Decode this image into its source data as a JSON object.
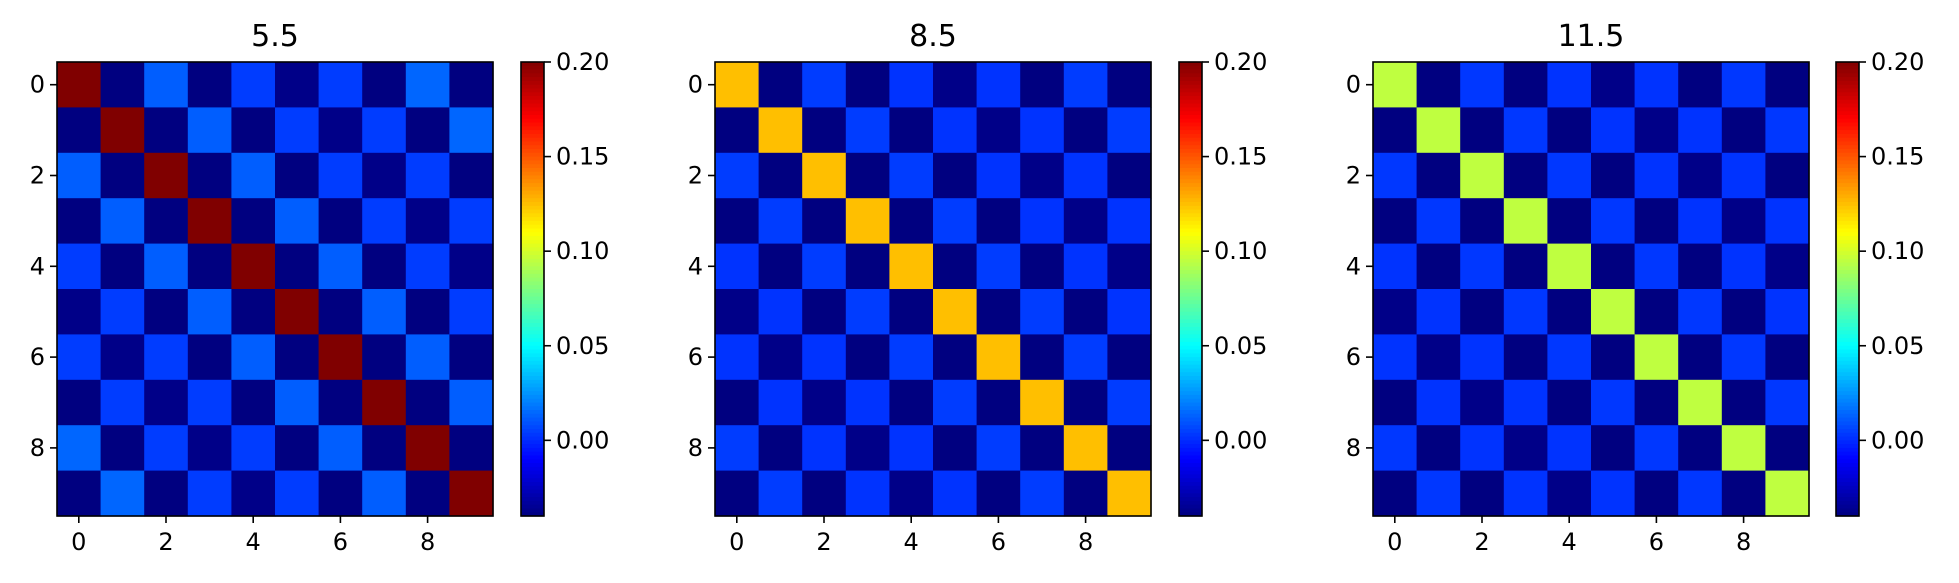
{
  "chart_data": [
    {
      "type": "heatmap",
      "title": "5.5",
      "xticks": [
        "0",
        "2",
        "4",
        "6",
        "8"
      ],
      "yticks": [
        "0",
        "2",
        "4",
        "6",
        "8"
      ],
      "colorbar": {
        "colormap": "jet",
        "vmin": -0.04,
        "vmax": 0.2,
        "ticks": [
          "0.00",
          "0.05",
          "0.10",
          "0.15",
          "0.20"
        ]
      },
      "matrix": [
        [
          0.2,
          -0.04,
          0.012,
          -0.04,
          0.004,
          -0.038,
          0.004,
          -0.04,
          0.014,
          -0.04
        ],
        [
          -0.04,
          0.2,
          -0.04,
          0.012,
          -0.04,
          0.004,
          -0.038,
          0.004,
          -0.04,
          0.014
        ],
        [
          0.012,
          -0.04,
          0.2,
          -0.04,
          0.012,
          -0.04,
          0.004,
          -0.038,
          0.004,
          -0.04
        ],
        [
          -0.04,
          0.012,
          -0.04,
          0.2,
          -0.04,
          0.012,
          -0.04,
          0.004,
          -0.038,
          0.004
        ],
        [
          0.004,
          -0.04,
          0.012,
          -0.04,
          0.2,
          -0.04,
          0.012,
          -0.04,
          0.004,
          -0.038
        ],
        [
          -0.038,
          0.004,
          -0.04,
          0.012,
          -0.04,
          0.2,
          -0.04,
          0.012,
          -0.04,
          0.004
        ],
        [
          0.004,
          -0.038,
          0.004,
          -0.04,
          0.012,
          -0.04,
          0.2,
          -0.04,
          0.012,
          -0.04
        ],
        [
          -0.04,
          0.004,
          -0.038,
          0.004,
          -0.04,
          0.012,
          -0.04,
          0.2,
          -0.04,
          0.012
        ],
        [
          0.014,
          -0.04,
          0.004,
          -0.038,
          0.004,
          -0.04,
          0.012,
          -0.04,
          0.2,
          -0.04
        ],
        [
          -0.04,
          0.014,
          -0.04,
          0.004,
          -0.038,
          0.004,
          -0.04,
          0.012,
          -0.04,
          0.2
        ]
      ]
    },
    {
      "type": "heatmap",
      "title": "8.5",
      "xticks": [
        "0",
        "2",
        "4",
        "6",
        "8"
      ],
      "yticks": [
        "0",
        "2",
        "4",
        "6",
        "8"
      ],
      "colorbar": {
        "colormap": "jet",
        "vmin": -0.04,
        "vmax": 0.2,
        "ticks": [
          "0.00",
          "0.05",
          "0.10",
          "0.15",
          "0.20"
        ]
      },
      "matrix": [
        [
          0.125,
          -0.04,
          0.004,
          -0.04,
          0.002,
          -0.038,
          0.002,
          -0.04,
          0.004,
          -0.04
        ],
        [
          -0.04,
          0.125,
          -0.04,
          0.004,
          -0.04,
          0.002,
          -0.038,
          0.002,
          -0.04,
          0.004
        ],
        [
          0.004,
          -0.04,
          0.125,
          -0.04,
          0.004,
          -0.04,
          0.002,
          -0.038,
          0.002,
          -0.04
        ],
        [
          -0.04,
          0.004,
          -0.04,
          0.125,
          -0.04,
          0.004,
          -0.04,
          0.002,
          -0.038,
          0.002
        ],
        [
          0.002,
          -0.04,
          0.004,
          -0.04,
          0.125,
          -0.04,
          0.004,
          -0.04,
          0.002,
          -0.038
        ],
        [
          -0.038,
          0.002,
          -0.04,
          0.004,
          -0.04,
          0.125,
          -0.04,
          0.004,
          -0.04,
          0.002
        ],
        [
          0.002,
          -0.038,
          0.002,
          -0.04,
          0.004,
          -0.04,
          0.125,
          -0.04,
          0.004,
          -0.04
        ],
        [
          -0.04,
          0.002,
          -0.038,
          0.002,
          -0.04,
          0.004,
          -0.04,
          0.125,
          -0.04,
          0.004
        ],
        [
          0.004,
          -0.04,
          0.002,
          -0.038,
          0.002,
          -0.04,
          0.004,
          -0.04,
          0.125,
          -0.04
        ],
        [
          -0.04,
          0.004,
          -0.04,
          0.002,
          -0.038,
          0.002,
          -0.04,
          0.004,
          -0.04,
          0.125
        ]
      ]
    },
    {
      "type": "heatmap",
      "title": "11.5",
      "xticks": [
        "0",
        "2",
        "4",
        "6",
        "8"
      ],
      "yticks": [
        "0",
        "2",
        "4",
        "6",
        "8"
      ],
      "colorbar": {
        "colormap": "jet",
        "vmin": -0.04,
        "vmax": 0.2,
        "ticks": [
          "0.00",
          "0.05",
          "0.10",
          "0.15",
          "0.20"
        ]
      },
      "matrix": [
        [
          0.095,
          -0.04,
          0.003,
          -0.04,
          0.002,
          -0.038,
          0.002,
          -0.04,
          0.003,
          -0.04
        ],
        [
          -0.04,
          0.095,
          -0.04,
          0.003,
          -0.04,
          0.002,
          -0.038,
          0.002,
          -0.04,
          0.003
        ],
        [
          0.003,
          -0.04,
          0.095,
          -0.04,
          0.003,
          -0.04,
          0.002,
          -0.038,
          0.002,
          -0.04
        ],
        [
          -0.04,
          0.003,
          -0.04,
          0.095,
          -0.04,
          0.003,
          -0.04,
          0.002,
          -0.038,
          0.002
        ],
        [
          0.002,
          -0.04,
          0.003,
          -0.04,
          0.095,
          -0.04,
          0.003,
          -0.04,
          0.002,
          -0.038
        ],
        [
          -0.038,
          0.002,
          -0.04,
          0.003,
          -0.04,
          0.095,
          -0.04,
          0.003,
          -0.04,
          0.002
        ],
        [
          0.002,
          -0.038,
          0.002,
          -0.04,
          0.003,
          -0.04,
          0.095,
          -0.04,
          0.003,
          -0.04
        ],
        [
          -0.04,
          0.002,
          -0.038,
          0.002,
          -0.04,
          0.003,
          -0.04,
          0.095,
          -0.04,
          0.003
        ],
        [
          0.003,
          -0.04,
          0.002,
          -0.038,
          0.002,
          -0.04,
          0.003,
          -0.04,
          0.095,
          -0.04
        ],
        [
          -0.04,
          0.003,
          -0.04,
          0.002,
          -0.038,
          0.002,
          -0.04,
          0.003,
          -0.04,
          0.095
        ]
      ]
    }
  ]
}
